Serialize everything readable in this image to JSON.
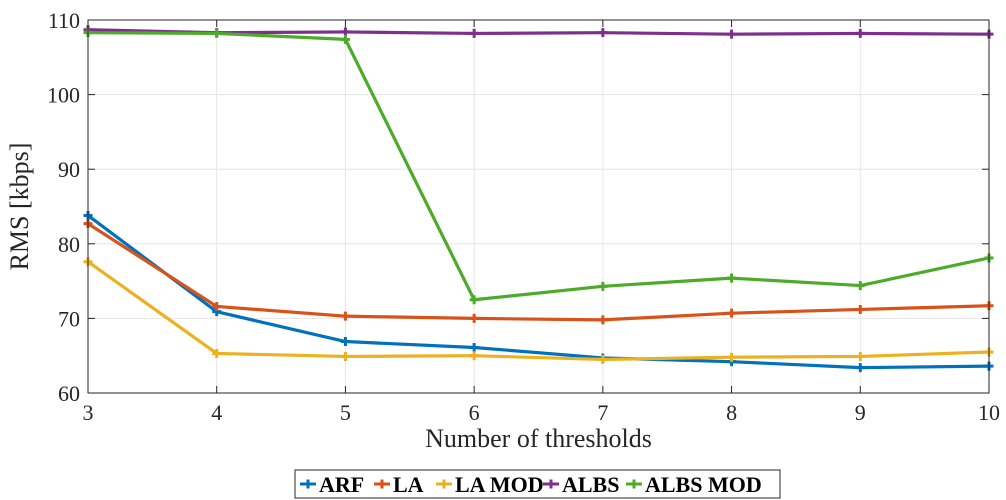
{
  "chart_data": {
    "type": "line",
    "title": "",
    "xlabel": "Number of thresholds",
    "ylabel": "RMS [kbps]",
    "x": [
      3,
      4,
      5,
      6,
      7,
      8,
      9,
      10
    ],
    "xlim": [
      3,
      10
    ],
    "ylim": [
      60,
      110
    ],
    "xticks": [
      "3",
      "4",
      "5",
      "6",
      "7",
      "8",
      "9",
      "10"
    ],
    "yticks": [
      "60",
      "70",
      "80",
      "90",
      "100",
      "110"
    ],
    "grid": true,
    "legend_placement": "bottom",
    "series": [
      {
        "name": "ARF",
        "color": "#0072BD",
        "values": [
          83.8,
          70.9,
          66.9,
          66.1,
          64.7,
          64.2,
          63.4,
          63.6
        ]
      },
      {
        "name": "LA",
        "color": "#D95319",
        "values": [
          82.7,
          71.6,
          70.3,
          70.0,
          69.8,
          70.7,
          71.2,
          71.7
        ]
      },
      {
        "name": "LA MOD",
        "color": "#EDB120",
        "values": [
          77.6,
          65.3,
          64.9,
          65.0,
          64.5,
          64.8,
          64.9,
          65.5
        ]
      },
      {
        "name": "ALBS",
        "color": "#7E2F8E",
        "values": [
          108.7,
          108.3,
          108.4,
          108.2,
          108.3,
          108.1,
          108.2,
          108.1
        ]
      },
      {
        "name": "ALBS MOD",
        "color": "#4DAB2A",
        "values": [
          108.3,
          108.2,
          107.4,
          72.5,
          74.3,
          75.4,
          74.4,
          78.1
        ]
      }
    ]
  }
}
